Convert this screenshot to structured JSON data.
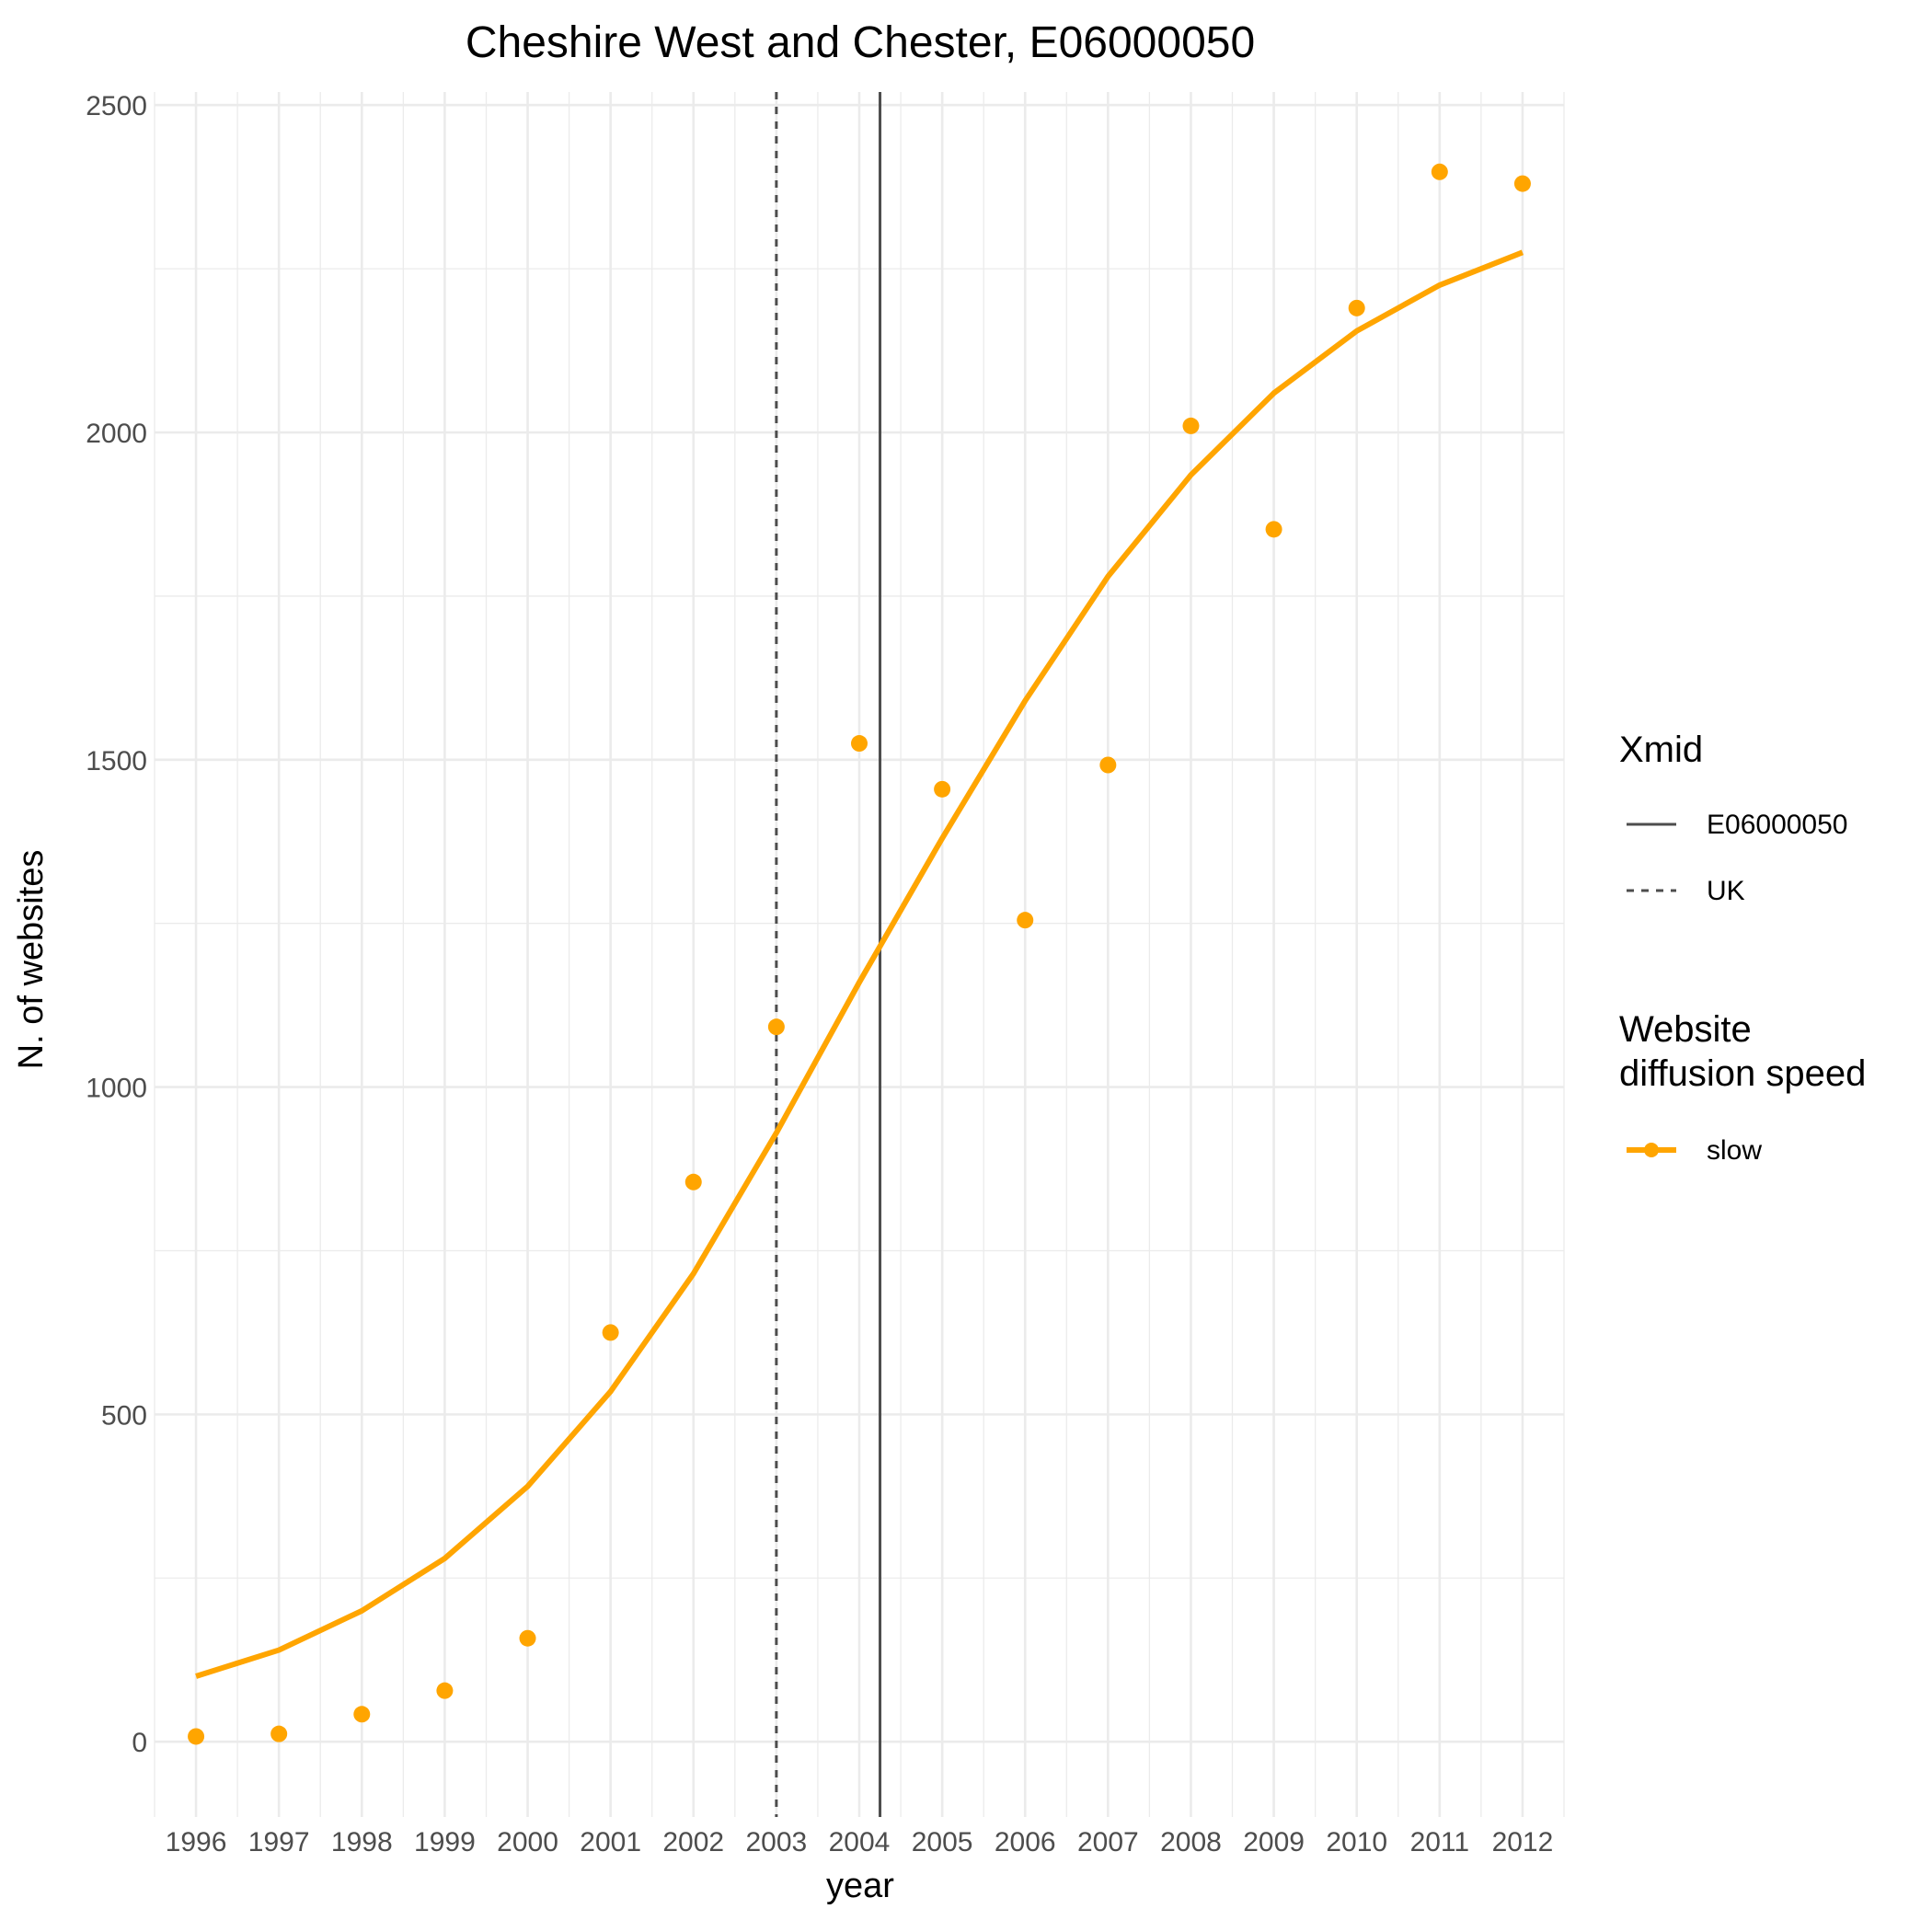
{
  "chart_data": {
    "type": "line",
    "title": "Cheshire West and Chester, E06000050",
    "xlabel": "year",
    "ylabel": "N. of websites",
    "xlim": [
      1995.5,
      2012.5
    ],
    "ylim": [
      -115,
      2520
    ],
    "x_ticks": [
      1996,
      1997,
      1998,
      1999,
      2000,
      2001,
      2002,
      2003,
      2004,
      2005,
      2006,
      2007,
      2008,
      2009,
      2010,
      2011,
      2012
    ],
    "y_ticks": [
      0,
      500,
      1000,
      1500,
      2000,
      2500
    ],
    "grid": true,
    "series": [
      {
        "name": "slow",
        "color": "#ffa500",
        "x": [
          1996,
          1997,
          1998,
          1999,
          2000,
          2001,
          2002,
          2003,
          2004,
          2005,
          2006,
          2007,
          2008,
          2009,
          2010,
          2011,
          2012
        ],
        "points": [
          8,
          12,
          42,
          78,
          158,
          625,
          855,
          1092,
          1525,
          1455,
          1255,
          1492,
          2010,
          1852,
          2190,
          2398,
          2380
        ],
        "fitted": [
          100,
          140,
          200,
          280,
          390,
          535,
          715,
          930,
          1160,
          1380,
          1590,
          1780,
          1935,
          2060,
          2155,
          2225,
          2275
        ]
      }
    ],
    "vlines": [
      {
        "name": "E06000050",
        "x": 2004.25,
        "linetype": "solid",
        "color": "#4d4d4d"
      },
      {
        "name": "UK",
        "x": 2003.0,
        "linetype": "dashed",
        "color": "#4d4d4d"
      }
    ],
    "legend": {
      "placement": "right",
      "groups": [
        {
          "title": "Xmid",
          "entries": [
            "E06000050",
            "UK"
          ]
        },
        {
          "title_lines": [
            "Website",
            "diffusion speed"
          ],
          "entries": [
            "slow"
          ]
        }
      ]
    }
  }
}
